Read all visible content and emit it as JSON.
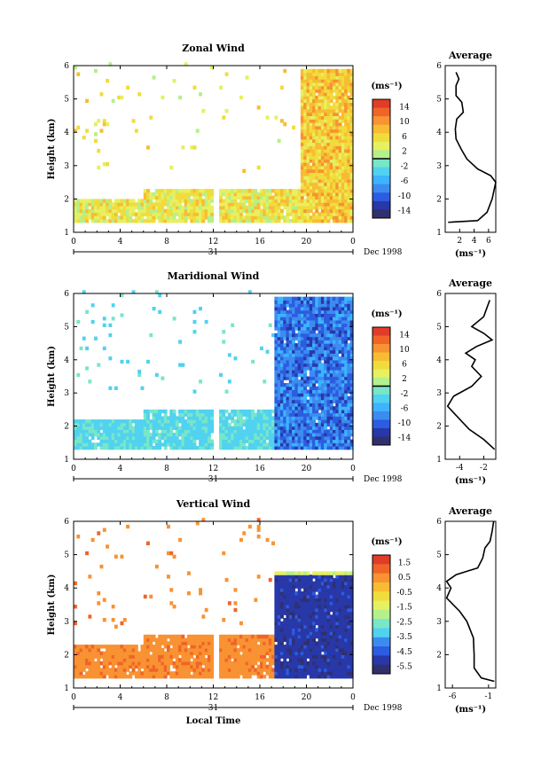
{
  "chart_data": [
    {
      "type": "heatmap",
      "title": "Zonal Wind",
      "ylabel": "Height (km)",
      "ylim": [
        1,
        6
      ],
      "yticks": [
        "1",
        "2",
        "3",
        "4",
        "5",
        "6"
      ],
      "xticks": [
        "0",
        "4",
        "8",
        "12",
        "16",
        "20",
        "0"
      ],
      "xlim": [
        0,
        24
      ],
      "day_label": "31",
      "date_label": "Dec 1998",
      "colorbar": {
        "unit": "(ms⁻¹)",
        "ticks": [
          "14",
          "10",
          "6",
          "2",
          "-2",
          "-6",
          "-10",
          "-14"
        ],
        "range": [
          -14,
          14
        ],
        "zero_line": 0
      },
      "description_values": {
        "low_layer_top_km": 2.3,
        "late_period_start_hour": 19.5,
        "late_period_top_km": 5.8,
        "typical_value": 4
      },
      "profile": {
        "title": "Average",
        "xlabel": "(ms⁻¹)",
        "xticks": [
          "2",
          "4",
          "6"
        ],
        "xlim": [
          0,
          7
        ],
        "ylim": [
          1,
          6
        ],
        "yticks": [
          "1",
          "2",
          "3",
          "4",
          "5",
          "6"
        ],
        "points": [
          [
            0.4,
            1.3
          ],
          [
            4.5,
            1.35
          ],
          [
            5.8,
            1.6
          ],
          [
            6.5,
            2.0
          ],
          [
            7.0,
            2.5
          ],
          [
            6.3,
            2.7
          ],
          [
            4.5,
            2.9
          ],
          [
            3.0,
            3.2
          ],
          [
            2.2,
            3.5
          ],
          [
            1.5,
            3.8
          ],
          [
            1.4,
            4.1
          ],
          [
            1.6,
            4.4
          ],
          [
            2.5,
            4.6
          ],
          [
            2.3,
            4.9
          ],
          [
            1.5,
            5.1
          ],
          [
            1.5,
            5.4
          ],
          [
            1.9,
            5.6
          ],
          [
            1.5,
            5.8
          ]
        ]
      }
    },
    {
      "type": "heatmap",
      "title": "Maridional Wind",
      "ylabel": "Height (km)",
      "ylim": [
        1,
        6
      ],
      "yticks": [
        "1",
        "2",
        "3",
        "4",
        "5",
        "6"
      ],
      "xticks": [
        "0",
        "4",
        "8",
        "12",
        "16",
        "20",
        "0"
      ],
      "xlim": [
        0,
        24
      ],
      "day_label": "31",
      "date_label": "Dec 1998",
      "colorbar": {
        "unit": "(ms⁻¹)",
        "ticks": [
          "14",
          "10",
          "6",
          "2",
          "-2",
          "-6",
          "-10",
          "-14"
        ],
        "range": [
          -14,
          14
        ],
        "zero_line": 0
      },
      "description_values": {
        "low_layer_top_km": 2.5,
        "late_period_start_hour": 17.2,
        "late_period_top_km": 5.8,
        "typical_value": -3
      },
      "profile": {
        "title": "Average",
        "xlabel": "(ms⁻¹)",
        "xticks": [
          "-4",
          "-2"
        ],
        "xlim": [
          -5.2,
          -1.0
        ],
        "ylim": [
          1,
          6
        ],
        "yticks": [
          "1",
          "2",
          "3",
          "4",
          "5",
          "6"
        ],
        "points": [
          [
            -1.1,
            1.3
          ],
          [
            -2.0,
            1.6
          ],
          [
            -3.2,
            1.9
          ],
          [
            -4.5,
            2.4
          ],
          [
            -5.0,
            2.6
          ],
          [
            -4.5,
            2.9
          ],
          [
            -3.0,
            3.2
          ],
          [
            -2.2,
            3.5
          ],
          [
            -3.0,
            3.8
          ],
          [
            -2.7,
            4.0
          ],
          [
            -3.5,
            4.2
          ],
          [
            -2.6,
            4.4
          ],
          [
            -1.3,
            4.6
          ],
          [
            -2.0,
            4.8
          ],
          [
            -3.0,
            5.0
          ],
          [
            -2.0,
            5.3
          ],
          [
            -1.8,
            5.5
          ],
          [
            -1.5,
            5.8
          ]
        ]
      }
    },
    {
      "type": "heatmap",
      "title": "Vertical Wind",
      "ylabel": "Height (km)",
      "ylim": [
        1,
        6
      ],
      "yticks": [
        "1",
        "2",
        "3",
        "4",
        "5",
        "6"
      ],
      "xticks": [
        "0",
        "4",
        "8",
        "12",
        "16",
        "20",
        "0"
      ],
      "xlim": [
        0,
        24
      ],
      "day_label": "31",
      "date_label": "Dec 1998",
      "xlabel": "Local Time",
      "colorbar": {
        "unit": "(ms⁻¹)",
        "ticks": [
          "1.5",
          "0.5",
          "-0.5",
          "-1.5",
          "-2.5",
          "-3.5",
          "-4.5",
          "-5.5"
        ],
        "range": [
          -6,
          2
        ],
        "zero_line": null
      },
      "description_values": {
        "low_layer_top_km": 2.6,
        "late_period_start_hour": 17.2,
        "late_period_top_km": 4.5,
        "typical_value": 0.2
      },
      "profile": {
        "title": "Average",
        "xlabel": "(ms⁻¹)",
        "xticks": [
          "-6",
          "-1"
        ],
        "xlim": [
          -7,
          0
        ],
        "ylim": [
          1,
          6
        ],
        "yticks": [
          "1",
          "2",
          "3",
          "4",
          "5",
          "6"
        ],
        "points": [
          [
            -0.2,
            1.2
          ],
          [
            -2.0,
            1.3
          ],
          [
            -3.0,
            1.6
          ],
          [
            -3.0,
            2.0
          ],
          [
            -3.1,
            2.5
          ],
          [
            -4.0,
            3.0
          ],
          [
            -5.0,
            3.3
          ],
          [
            -6.8,
            3.7
          ],
          [
            -6.2,
            4.0
          ],
          [
            -6.8,
            4.2
          ],
          [
            -5.5,
            4.4
          ],
          [
            -4.0,
            4.5
          ],
          [
            -2.5,
            4.6
          ],
          [
            -1.8,
            4.9
          ],
          [
            -1.5,
            5.2
          ],
          [
            -0.8,
            5.4
          ],
          [
            -0.5,
            5.7
          ],
          [
            -0.3,
            6.0
          ]
        ]
      }
    }
  ]
}
